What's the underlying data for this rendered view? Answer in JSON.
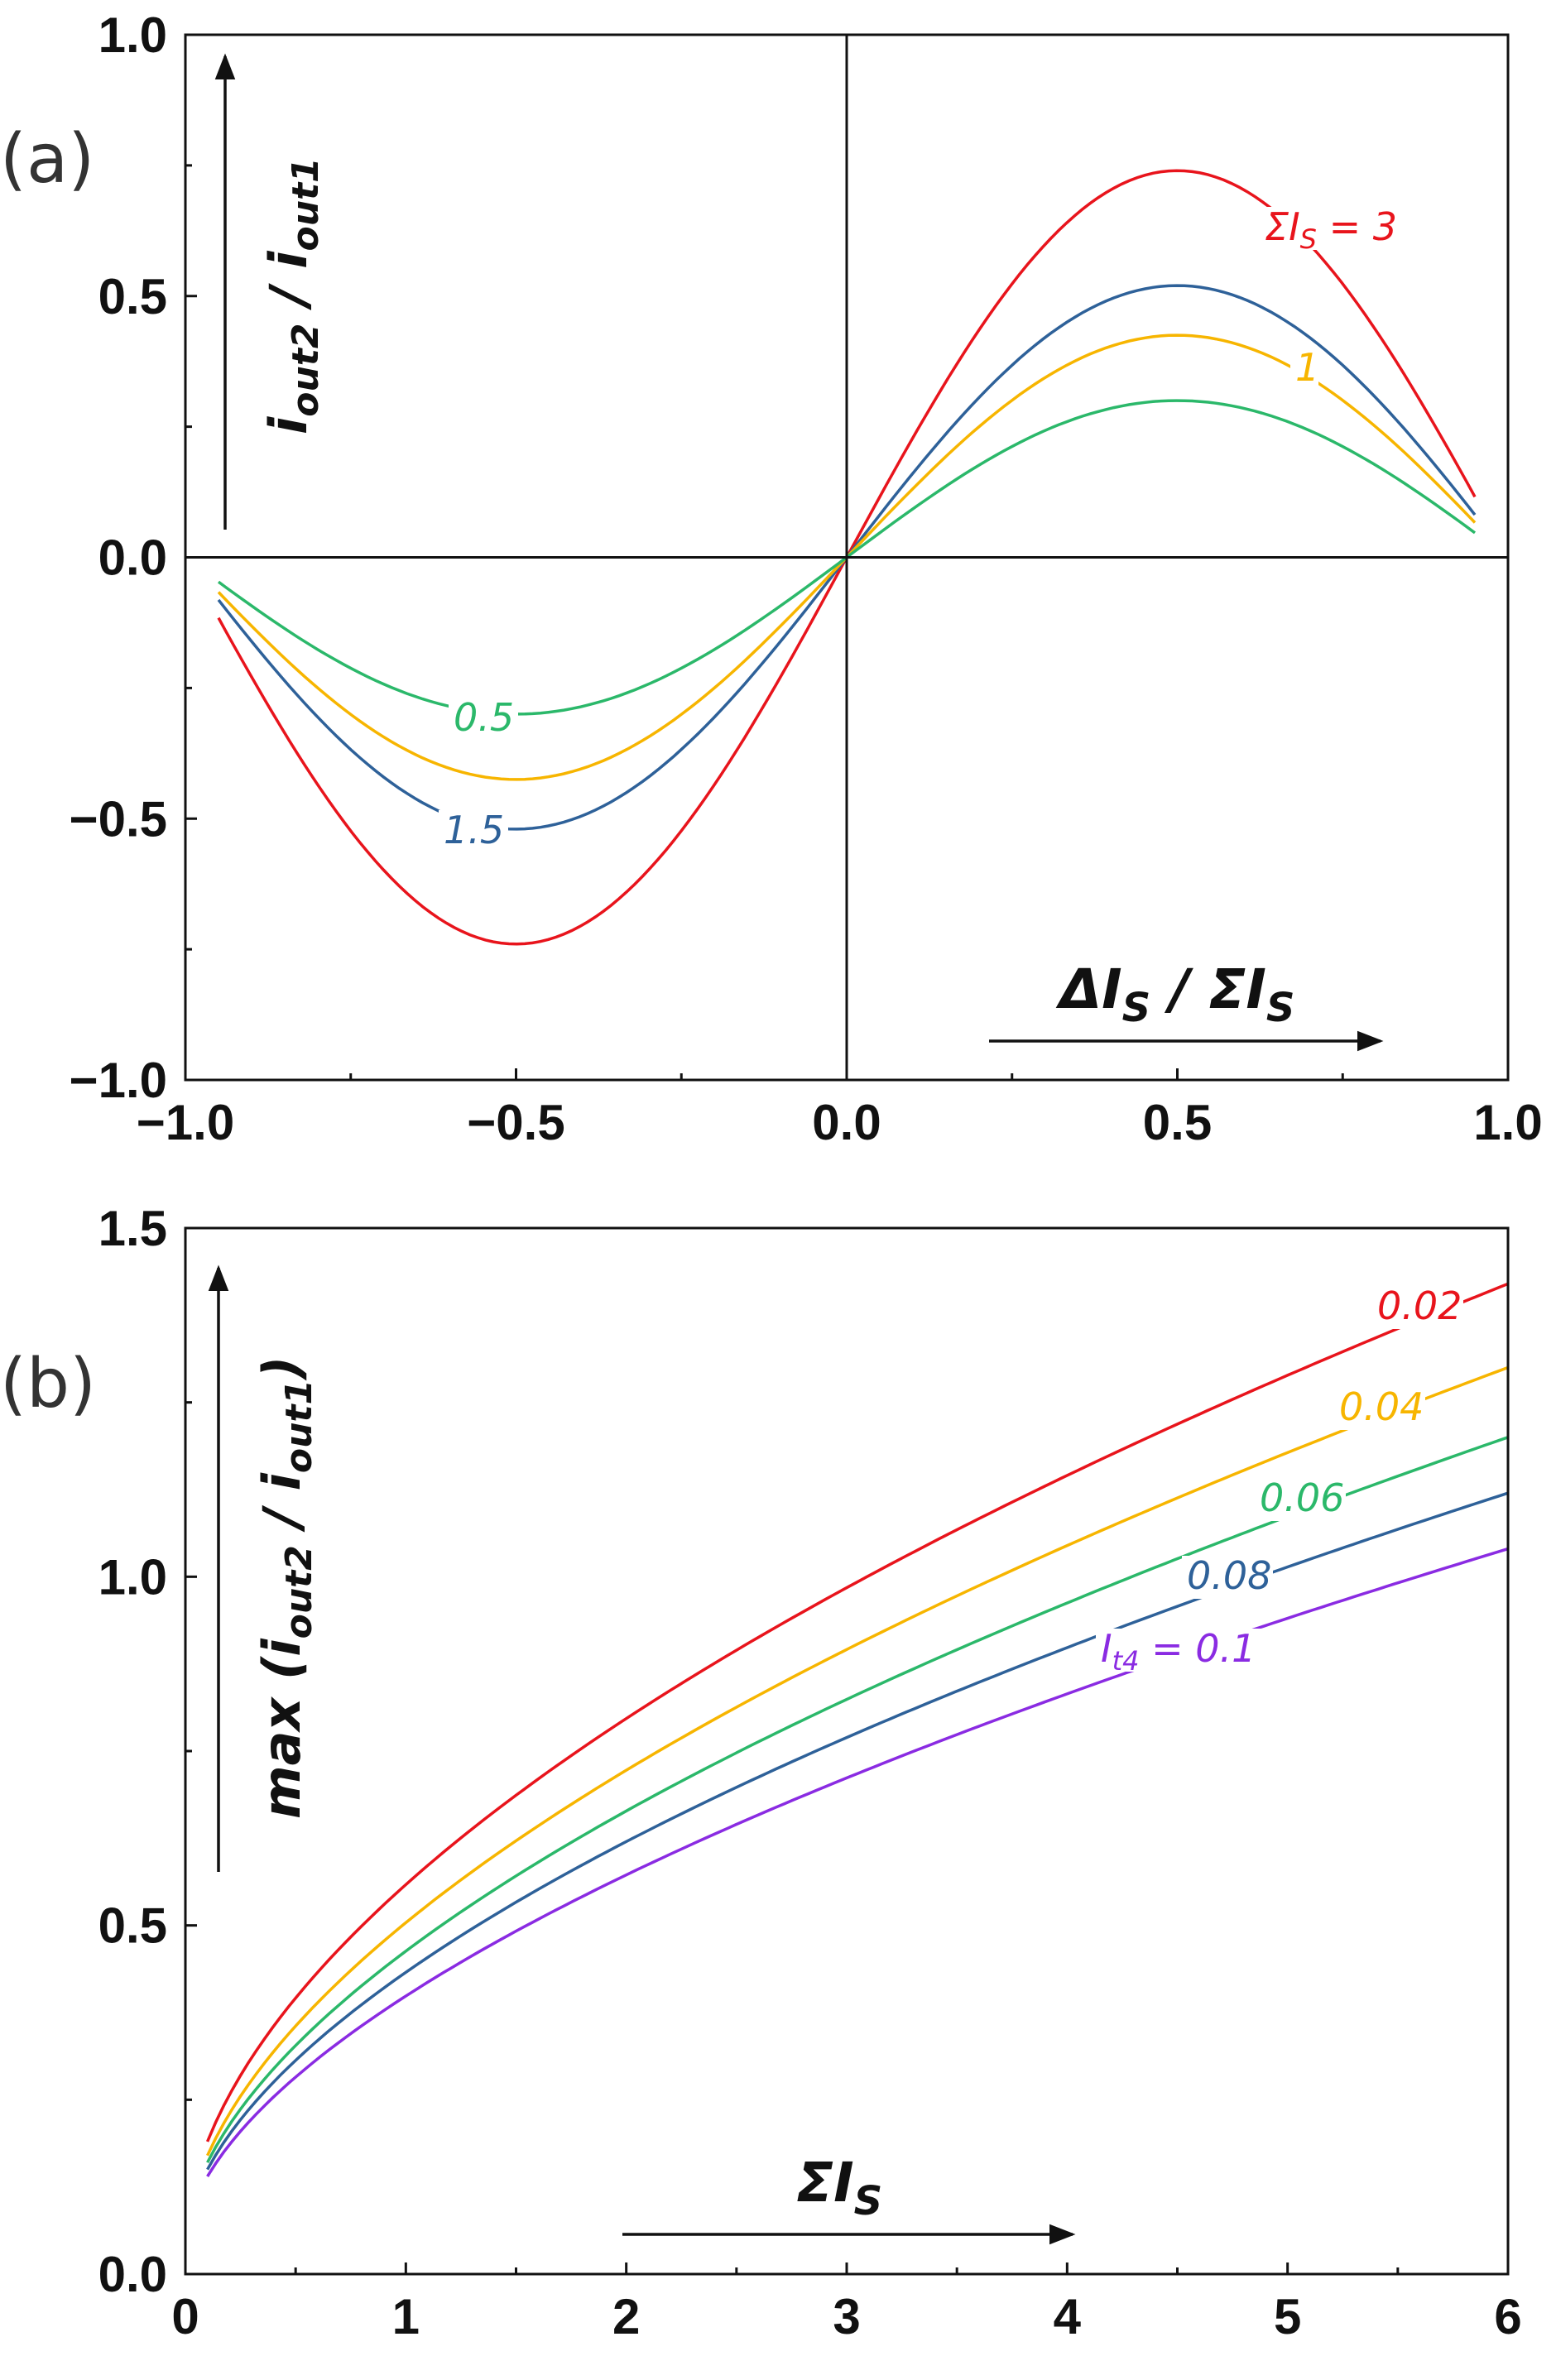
{
  "chart_data": [
    {
      "panel": "(a)",
      "type": "line",
      "x_range": [
        -1.0,
        1.0
      ],
      "y_range": [
        -1.0,
        1.0
      ],
      "x_ticks": [
        "−1.0",
        "−0.5",
        "0.0",
        "0.5",
        "1.0"
      ],
      "y_ticks": [
        "1.0",
        "0.5",
        "0.0",
        "−0.5",
        "−1.0"
      ],
      "xlabel": {
        "main": "ΔI",
        "sub": "S",
        "rest": " / ΣI",
        "sub2": "S"
      },
      "ylabel": {
        "a": "i",
        "a_sub": "out2",
        "b": " / i",
        "b_sub": "out1"
      },
      "grid": false,
      "reference_lines": [
        "x = 0",
        "y = 0"
      ],
      "x_domain": [
        -0.95,
        0.95
      ],
      "series": [
        {
          "name": "ΣIS = 3",
          "label": "ΣI",
          "label_sub": "S",
          "label_rest": " = 3",
          "color": "#e8141c",
          "amplitude": 0.74
        },
        {
          "name": "1.5",
          "label": "1.5",
          "color": "#2e6199",
          "amplitude": 0.52
        },
        {
          "name": "1",
          "label": "1",
          "color": "#f7b500",
          "amplitude": 0.425
        },
        {
          "name": "0.5",
          "label": "0.5",
          "color": "#2bb86a",
          "amplitude": 0.3
        }
      ]
    },
    {
      "panel": "(b)",
      "type": "line",
      "x_range": [
        0,
        6
      ],
      "y_range": [
        0.0,
        1.5
      ],
      "x_ticks": [
        "0",
        "1",
        "2",
        "3",
        "4",
        "5",
        "6"
      ],
      "y_ticks": [
        "1.5",
        "1.0",
        "0.5",
        "0.0"
      ],
      "xlabel": {
        "main": "ΣI",
        "sub": "S"
      },
      "ylabel": {
        "a": "max (i",
        "a_sub": "out2",
        "b": " / i",
        "b_sub": "out1",
        "c": ")"
      },
      "grid": false,
      "x_domain": [
        0.1,
        6.0
      ],
      "series": [
        {
          "name": "0.02",
          "label": "0.02",
          "color": "#e8141c",
          "start": 0.19,
          "end": 1.42,
          "exponent": 0.55
        },
        {
          "name": "0.04",
          "label": "0.04",
          "color": "#f7b500",
          "start": 0.17,
          "end": 1.3,
          "exponent": 0.56
        },
        {
          "name": "0.06",
          "label": "0.06",
          "color": "#2bb86a",
          "start": 0.16,
          "end": 1.2,
          "exponent": 0.57
        },
        {
          "name": "0.08",
          "label": "0.08",
          "color": "#2e6199",
          "start": 0.15,
          "end": 1.12,
          "exponent": 0.57
        },
        {
          "name": "It4 = 0.1",
          "label": "I",
          "label_sub": "t4",
          "label_rest": " = 0.1",
          "color": "#8a2be2",
          "start": 0.14,
          "end": 1.04,
          "exponent": 0.58
        }
      ]
    }
  ],
  "panel_labels": {
    "a": "(a)",
    "b": "(b)"
  }
}
